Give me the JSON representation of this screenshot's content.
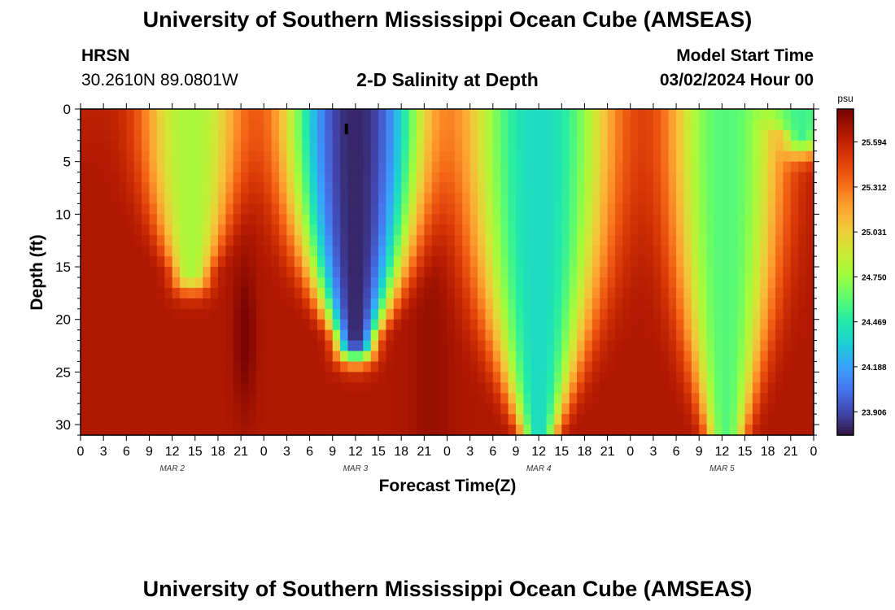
{
  "header": {
    "title": "University of Southern Mississippi Ocean Cube (AMSEAS)",
    "station": "HRSN",
    "coords": "30.2610N  89.0801W",
    "subtitle": "2-D Salinity at Depth",
    "model_start_label": "Model Start Time",
    "model_start_value": "03/02/2024 Hour 00"
  },
  "footer": {
    "title": "University of Southern Mississippi Ocean Cube (AMSEAS)"
  },
  "colors": {
    "colormap": [
      "#30123b",
      "#4145ab",
      "#4675ed",
      "#39a2fc",
      "#1bcfd4",
      "#24eca6",
      "#61fc6c",
      "#a4fc3b",
      "#d1e834",
      "#f3c63a",
      "#fe9b2d",
      "#f36315",
      "#d93806",
      "#b11901",
      "#7a0402"
    ],
    "marker": "#000000"
  },
  "chart_data": {
    "type": "heatmap",
    "title": "2-D Salinity at Depth",
    "xlabel": "Forecast Time(Z)",
    "ylabel": "Depth (ft)",
    "x_range_hours": [
      0,
      96
    ],
    "y_range_ft": [
      0,
      31
    ],
    "x_ticks": [
      "0",
      "3",
      "6",
      "9",
      "12",
      "15",
      "18",
      "21",
      "0",
      "3",
      "6",
      "9",
      "12",
      "15",
      "18",
      "21",
      "0",
      "3",
      "6",
      "9",
      "12",
      "15",
      "18",
      "21",
      "0",
      "3",
      "6",
      "9",
      "12",
      "15",
      "18",
      "21",
      "0"
    ],
    "y_ticks": [
      0,
      5,
      10,
      15,
      20,
      25,
      30
    ],
    "day_labels": [
      {
        "hour": 12,
        "label": "MAR 2"
      },
      {
        "hour": 36,
        "label": "MAR 3"
      },
      {
        "hour": 60,
        "label": "MAR 4"
      },
      {
        "hour": 84,
        "label": "MAR 5"
      }
    ],
    "colorbar": {
      "unit": "psu",
      "range": [
        23.76,
        25.8
      ],
      "ticks": [
        "23.906",
        "24.188",
        "24.469",
        "24.750",
        "25.031",
        "25.312",
        "25.594"
      ]
    },
    "fresh_plumes": [
      {
        "hour": 14.5,
        "half_width_hours": 4.0,
        "max_depth_ft": 15.5,
        "min_salinity": 24.8
      },
      {
        "hour": 36.0,
        "half_width_hours": 6.5,
        "max_depth_ft": 22.0,
        "min_salinity": 23.82
      },
      {
        "hour": 60.0,
        "half_width_hours": 7.0,
        "max_depth_ft": 30.5,
        "min_salinity": 24.4
      },
      {
        "hour": 84.5,
        "half_width_hours": 5.0,
        "max_depth_ft": 31.0,
        "min_salinity": 24.6
      },
      {
        "hour": 94.5,
        "half_width_hours": 2.5,
        "max_depth_ft": 2.5,
        "min_salinity": 24.55
      }
    ],
    "salty_core": {
      "hour": 21.5,
      "depth_ft": 21.5,
      "salinity": 25.8
    }
  }
}
